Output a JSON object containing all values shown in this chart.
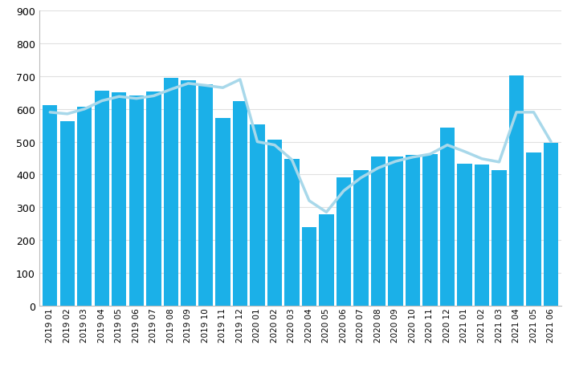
{
  "categories": [
    "2019 01",
    "2019 02",
    "2019 03",
    "2019 04",
    "2019 05",
    "2019 06",
    "2019 07",
    "2019 08",
    "2019 09",
    "2019 10",
    "2019 11",
    "2019 12",
    "2020 01",
    "2020 02",
    "2020 03",
    "2020 04",
    "2020 05",
    "2020 06",
    "2020 07",
    "2020 08",
    "2020 09",
    "2020 10",
    "2020 11",
    "2020 12",
    "2021 01",
    "2021 02",
    "2021 03",
    "2021 04",
    "2021 05",
    "2021 06"
  ],
  "bar_values": [
    612,
    563,
    607,
    655,
    652,
    640,
    653,
    695,
    688,
    675,
    572,
    625,
    552,
    507,
    447,
    240,
    278,
    390,
    413,
    454,
    455,
    460,
    462,
    543,
    432,
    430,
    414,
    703,
    468,
    496
  ],
  "line_values": [
    590,
    585,
    600,
    625,
    638,
    632,
    640,
    660,
    678,
    672,
    665,
    690,
    500,
    490,
    445,
    320,
    285,
    350,
    390,
    420,
    440,
    453,
    462,
    490,
    470,
    448,
    438,
    590,
    590,
    500
  ],
  "bar_color": "#1BB0E8",
  "line_color": "#A8D8EA",
  "background_color": "#ffffff",
  "grid_color": "#e0e0e0",
  "ylim": [
    0,
    900
  ],
  "yticks": [
    0,
    100,
    200,
    300,
    400,
    500,
    600,
    700,
    800,
    900
  ]
}
